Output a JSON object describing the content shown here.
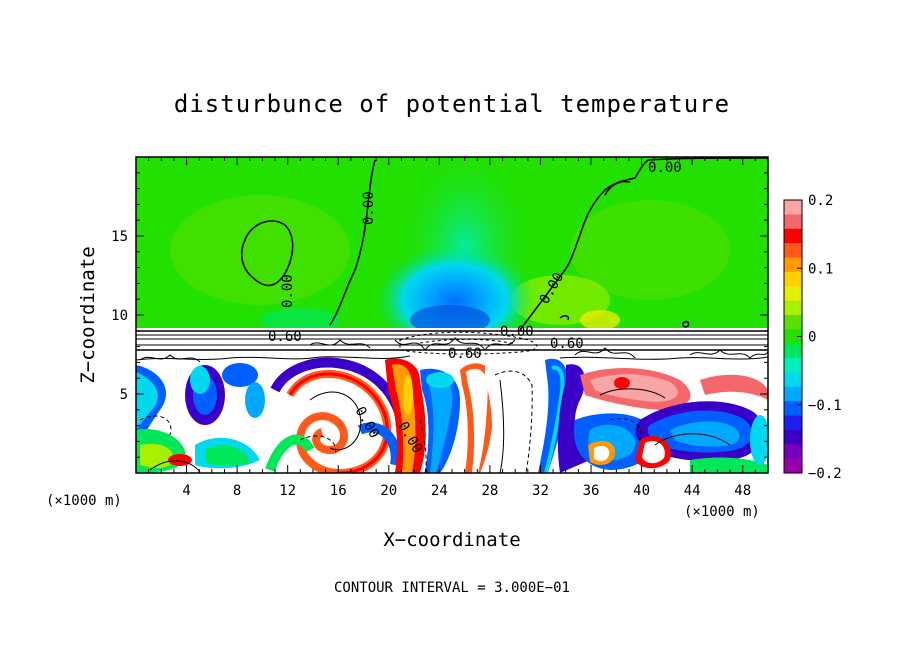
{
  "chart_data": {
    "type": "heatmap",
    "title": "disturbunce of potential temperature",
    "xlabel": "X−coordinate",
    "ylabel": "Z−coordinate",
    "x_unit": "(×1000 m)",
    "z_unit": "(×1000 m)",
    "xlim": [
      0,
      50
    ],
    "ylim": [
      0,
      20
    ],
    "x_ticks": [
      4,
      8,
      12,
      16,
      20,
      24,
      28,
      32,
      36,
      40,
      44,
      48
    ],
    "y_ticks": [
      5,
      10,
      15
    ],
    "note": "CONTOUR INTERVAL = 3.000E−01",
    "colorbar": {
      "range": [
        -0.2,
        0.2
      ],
      "ticks": [
        "0.2",
        "0.1",
        "0",
        "−0.1",
        "−0.2"
      ],
      "colors": [
        "#f9a5a5",
        "#f4686c",
        "#ff0000",
        "#ff5a1a",
        "#ff9a00",
        "#ffd000",
        "#e5ee00",
        "#a8f000",
        "#5ae000",
        "#22e000",
        "#00e85a",
        "#00eebb",
        "#00d8ee",
        "#00a8ff",
        "#0060ff",
        "#1e1ef0",
        "#3a00c8",
        "#7a00c0",
        "#9a00aa"
      ]
    },
    "contour_labels": [
      "0.00",
      "0.00",
      "0.00",
      "0.00",
      "0.00",
      "0.60",
      "0.60",
      "0.60",
      "0.00",
      "0.00"
    ]
  }
}
